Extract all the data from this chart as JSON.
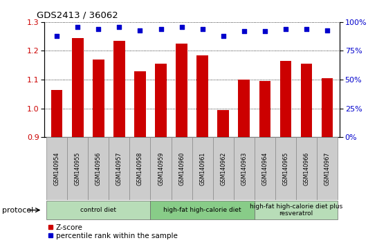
{
  "title": "GDS2413 / 36062",
  "samples": [
    "GSM140954",
    "GSM140955",
    "GSM140956",
    "GSM140957",
    "GSM140958",
    "GSM140959",
    "GSM140960",
    "GSM140961",
    "GSM140962",
    "GSM140963",
    "GSM140964",
    "GSM140965",
    "GSM140966",
    "GSM140967"
  ],
  "zscore": [
    1.065,
    1.245,
    1.17,
    1.235,
    1.13,
    1.155,
    1.225,
    1.185,
    0.995,
    1.1,
    1.095,
    1.165,
    1.155,
    1.105
  ],
  "percentile": [
    88,
    96,
    94,
    96,
    93,
    94,
    96,
    94,
    88,
    92,
    92,
    94,
    94,
    93
  ],
  "ylim_left": [
    0.9,
    1.3
  ],
  "ylim_right": [
    0,
    100
  ],
  "yticks_left": [
    0.9,
    1.0,
    1.1,
    1.2,
    1.3
  ],
  "yticks_right": [
    0,
    25,
    50,
    75,
    100
  ],
  "bar_color": "#cc0000",
  "dot_color": "#0000cc",
  "bar_width": 0.55,
  "groups": [
    {
      "label": "control diet",
      "start": 0,
      "end": 4,
      "color": "#b8ddb8"
    },
    {
      "label": "high-fat high-calorie diet",
      "start": 5,
      "end": 9,
      "color": "#88cc88"
    },
    {
      "label": "high-fat high-calorie diet plus\nresveratrol",
      "start": 10,
      "end": 13,
      "color": "#b8ddb8"
    }
  ],
  "protocol_label": "protocol",
  "legend_zscore": "Z-score",
  "legend_percentile": "percentile rank within the sample",
  "tick_label_color_left": "#cc0000",
  "tick_label_color_right": "#0000cc",
  "sample_box_color": "#cccccc",
  "sample_box_edge": "#888888"
}
